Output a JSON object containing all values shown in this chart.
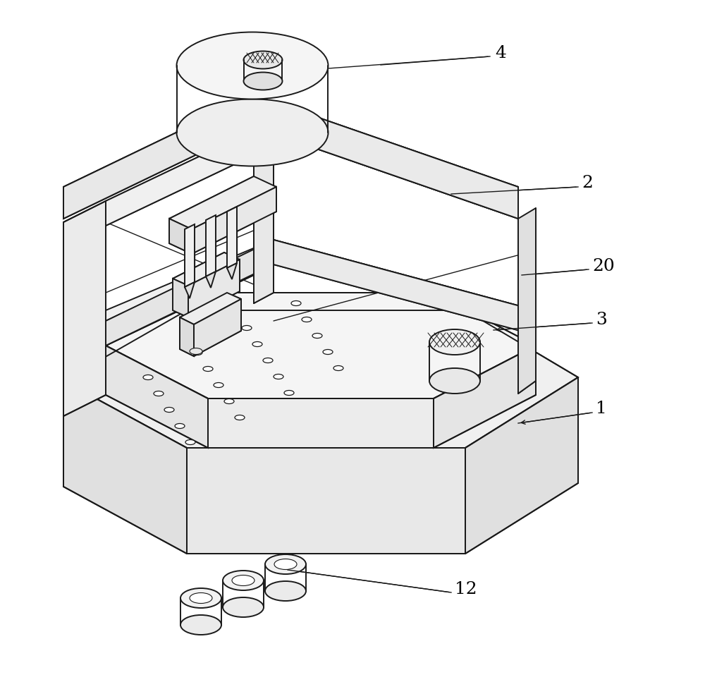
{
  "bg_color": "#ffffff",
  "line_color": "#1a1a1a",
  "line_width": 1.4,
  "fig_width": 10.0,
  "fig_height": 9.84,
  "ann_color": "#1a1a1a",
  "label_fontsize": 18
}
